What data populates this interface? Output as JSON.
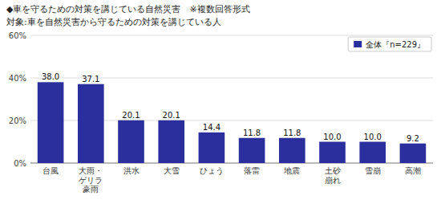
{
  "chart_data": {
    "type": "bar",
    "title": "◆車を守るための対策を講じている自然災害　※複数回答形式",
    "subtitle": "対象:車を自然災害から守るための対策を講じている人",
    "categories": [
      "台風",
      "大雨・\nゲリラ\n豪雨",
      "洪水",
      "大雪",
      "ひょう",
      "落雷",
      "地震",
      "土砂\n崩れ",
      "雪崩",
      "高潮"
    ],
    "series": [
      {
        "name": "全体『n=229』",
        "color": "#2B2F9E",
        "values": [
          38.0,
          37.1,
          20.1,
          20.1,
          14.4,
          11.8,
          11.8,
          10.0,
          10.0,
          9.2
        ],
        "value_labels": [
          "38.0",
          "37.1",
          "20.1",
          "20.1",
          "14.4",
          "11.8",
          "11.8",
          "10.0",
          "10.0",
          "9.2"
        ]
      }
    ],
    "ylim": [
      0,
      60
    ],
    "yticks": [
      {
        "value": 0,
        "label": "0%"
      },
      {
        "value": 20,
        "label": "20%"
      },
      {
        "value": 40,
        "label": "40%"
      },
      {
        "value": 60,
        "label": "60%"
      }
    ],
    "grid": true,
    "legend": "upper right",
    "data_labels": true
  }
}
